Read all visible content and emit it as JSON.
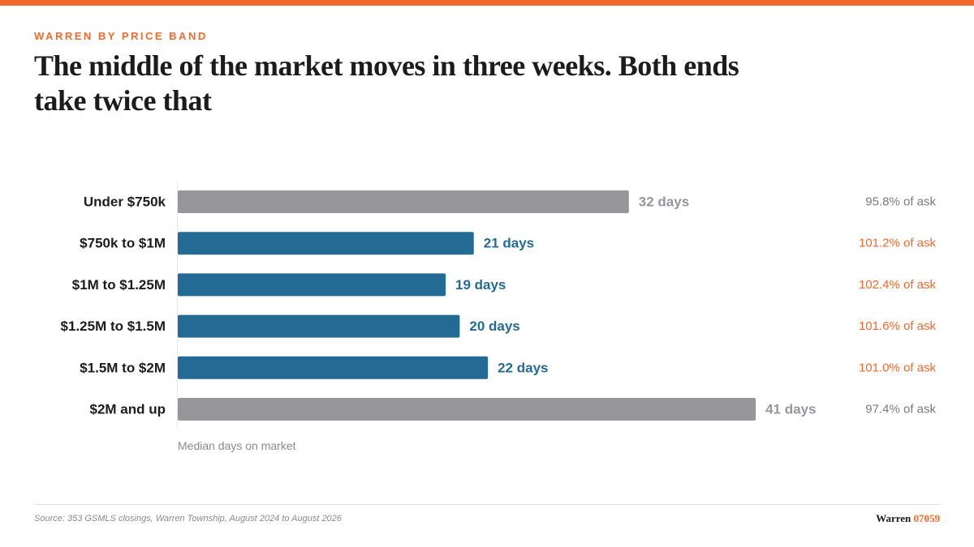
{
  "eyebrow": "WARREN BY PRICE BAND",
  "headline": "The middle of the market moves in three weeks. Both ends take twice that",
  "footer": {
    "source": "Source: 353 GSMLS closings, Warren Township, August 2024 to August 2026",
    "brand_name": "Warren",
    "brand_zip": "07059"
  },
  "colors": {
    "accent": "#f26a2b",
    "highlight_bar": "#236b94",
    "muted_bar": "#97969b",
    "muted_text": "#7a7a7f",
    "ink": "#1c1c1c"
  },
  "chart_data": {
    "type": "bar",
    "orientation": "horizontal",
    "categories": [
      "Under $750k",
      "$750k to $1M",
      "$1M to $1.25M",
      "$1.25M to $1.5M",
      "$1.5M to $2M",
      "$2M and up"
    ],
    "values": [
      32,
      21,
      19,
      20,
      22,
      41
    ],
    "value_labels": [
      "32 days",
      "21 days",
      "19 days",
      "20 days",
      "22 days",
      "41 days"
    ],
    "highlighted": [
      false,
      true,
      true,
      true,
      true,
      false
    ],
    "secondary_labels": [
      "95.8% of ask",
      "101.2% of ask",
      "102.4% of ask",
      "101.6% of ask",
      "101.0% of ask",
      "97.4% of ask"
    ],
    "xlabel": "Median days on market",
    "xlim": [
      0,
      47.5
    ],
    "grid": false,
    "legend": "none"
  }
}
